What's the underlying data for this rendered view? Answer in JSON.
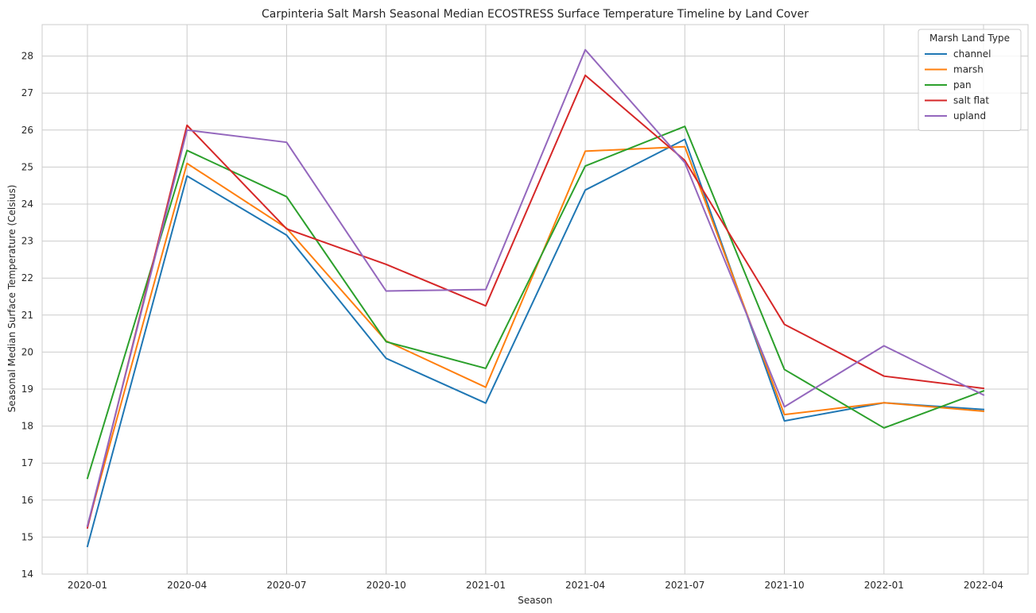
{
  "chart_data": {
    "type": "line",
    "title": "Carpinteria Salt Marsh Seasonal Median ECOSTRESS Surface Temperature Timeline by Land Cover",
    "xlabel": "Season",
    "ylabel": "Seasonal Median Surface Temperature (Celsius)",
    "x": [
      "2020-01",
      "2020-04",
      "2020-07",
      "2020-10",
      "2021-01",
      "2021-04",
      "2021-07",
      "2021-10",
      "2022-01",
      "2022-04"
    ],
    "ylim": [
      14,
      28.85
    ],
    "yticks": [
      14,
      15,
      16,
      17,
      18,
      19,
      20,
      21,
      22,
      23,
      24,
      25,
      26,
      27,
      28
    ],
    "grid": true,
    "legend": {
      "title": "Marsh Land Type",
      "placement": "top-right"
    },
    "series": [
      {
        "name": "channel",
        "color": "#1f77b4",
        "values": [
          14.75,
          24.76,
          23.16,
          19.83,
          18.62,
          24.38,
          25.75,
          18.14,
          18.63,
          18.45
        ]
      },
      {
        "name": "marsh",
        "color": "#ff7f0e",
        "values": [
          15.3,
          25.1,
          23.35,
          20.3,
          19.05,
          25.43,
          25.55,
          18.31,
          18.63,
          18.4
        ]
      },
      {
        "name": "pan",
        "color": "#2ca02c",
        "values": [
          16.59,
          25.45,
          24.2,
          20.28,
          19.56,
          25.03,
          26.1,
          19.53,
          17.95,
          18.95
        ]
      },
      {
        "name": "salt flat",
        "color": "#d62728",
        "values": [
          15.25,
          26.13,
          23.33,
          22.37,
          21.25,
          27.48,
          25.18,
          20.75,
          19.35,
          19.02
        ]
      },
      {
        "name": "upland",
        "color": "#9467bd",
        "values": [
          15.3,
          26.0,
          25.67,
          21.65,
          21.69,
          28.17,
          25.12,
          18.52,
          20.17,
          18.84
        ]
      }
    ]
  }
}
